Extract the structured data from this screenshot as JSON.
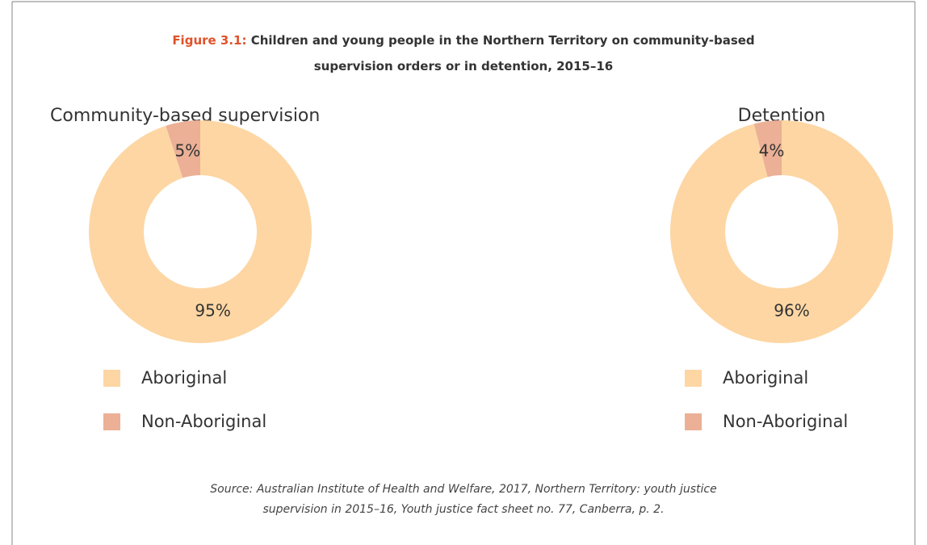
{
  "figure_label": "Figure 3.1:",
  "title": "Children and young people in the Northern Territory on community-based supervision orders or in detention, 2015–16",
  "source": "Source: Australian Institute of Health and Welfare, 2017, Northern Territory: youth justice supervision in 2015–16, Youth justice fact sheet no. 77, Canberra, p. 2.",
  "chart_data": [
    {
      "type": "donut",
      "title": "Community-based supervision",
      "categories": [
        "Aboriginal",
        "Non-Aboriginal"
      ],
      "values": [
        95,
        5
      ],
      "value_labels": [
        "95%",
        "5%"
      ],
      "colors": [
        "#fdd6a3",
        "#ebb096"
      ]
    },
    {
      "type": "donut",
      "title": "Detention",
      "categories": [
        "Aboriginal",
        "Non-Aboriginal"
      ],
      "values": [
        96,
        4
      ],
      "value_labels": [
        "96%",
        "4%"
      ],
      "colors": [
        "#fdd6a3",
        "#ebb096"
      ]
    }
  ]
}
